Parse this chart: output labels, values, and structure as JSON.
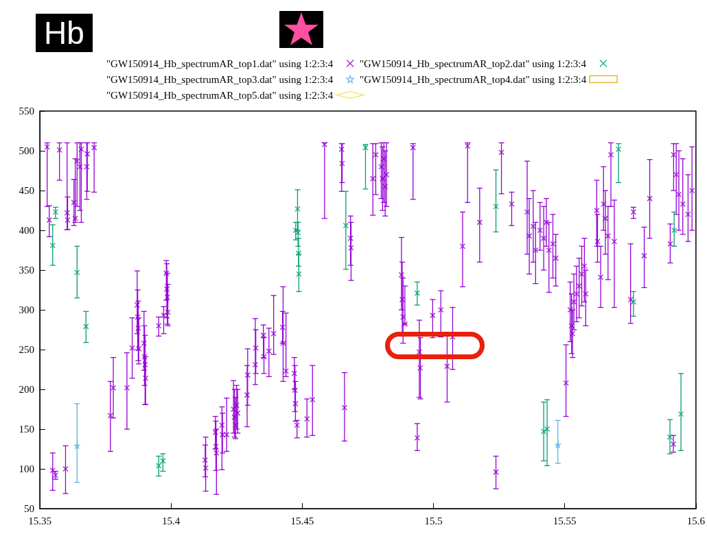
{
  "chart_data": {
    "type": "scatter",
    "annotations": [
      "Hb"
    ],
    "xlim": [
      15.35,
      15.6
    ],
    "xticks": [
      15.35,
      15.4,
      15.45,
      15.5,
      15.55,
      15.6
    ],
    "ylim": [
      50,
      550
    ],
    "yticks": [
      50,
      100,
      150,
      200,
      250,
      300,
      350,
      400,
      450,
      500,
      550
    ],
    "grid": false,
    "legend": "top",
    "series": [
      {
        "name": "\"GW150914_Hb_spectrumAR_top1.dat\" using 1:2:3:4",
        "color": "#9400d3",
        "marker": "cross",
        "x": [
          15.3528,
          15.3536,
          15.3575,
          15.3604,
          15.3606,
          15.363,
          15.3635,
          15.3642,
          15.3653,
          15.3658,
          15.3679,
          15.3681,
          15.3707,
          15.3549,
          15.356,
          15.3598,
          15.3769,
          15.378,
          15.3832,
          15.3852,
          15.3871,
          15.3873,
          15.3875,
          15.3877,
          15.3897,
          15.3899,
          15.3901,
          15.3903,
          15.3953,
          15.3972,
          15.3982,
          15.3984,
          15.3986,
          15.3988,
          15.4132,
          15.413,
          15.4169,
          15.4171,
          15.4173,
          15.4194,
          15.4196,
          15.4212,
          15.4238,
          15.4242,
          15.4246,
          15.425,
          15.4254,
          15.429,
          15.4292,
          15.4321,
          15.4323,
          15.4352,
          15.4354,
          15.4373,
          15.4391,
          15.4425,
          15.4427,
          15.4438,
          15.447,
          15.4472,
          15.4474,
          15.448,
          15.4518,
          15.4539,
          15.4661,
          15.4878,
          15.4881,
          15.4884,
          15.4891,
          15.4946,
          15.495,
          15.4938,
          15.4997,
          15.5028,
          15.5052,
          15.5073,
          15.5111,
          15.4585,
          15.465,
          15.4652,
          15.4684,
          15.4686,
          15.4769,
          15.478,
          15.4801,
          15.4806,
          15.4811,
          15.4816,
          15.4821,
          15.4922,
          15.513,
          15.5176,
          15.5259,
          15.5298,
          15.5357,
          15.5365,
          15.538,
          15.5389,
          15.5406,
          15.542,
          15.543,
          15.544,
          15.5455,
          15.5466,
          15.5505,
          15.5521,
          15.5526,
          15.553,
          15.5535,
          15.5545,
          15.5555,
          15.5565,
          15.5575,
          15.558,
          15.5622,
          15.5625,
          15.5637,
          15.5648,
          15.5655,
          15.5665,
          15.5676,
          15.5689,
          15.5751,
          15.5762,
          15.5803,
          15.5824,
          15.5902,
          15.5915,
          15.5925,
          15.5935,
          15.595,
          15.597,
          15.5985,
          15.5238,
          15.5914
        ],
        "values": [
          505,
          413,
          501,
          422,
          413,
          435,
          415,
          487,
          480,
          502,
          480,
          496,
          504,
          98,
          92,
          100,
          167,
          202,
          202,
          252,
          306,
          291,
          277,
          251,
          258,
          241,
          231,
          214,
          280,
          293,
          346,
          326,
          316,
          297,
          101,
          111,
          146,
          128,
          120,
          155,
          143,
          143,
          175,
          165,
          155,
          180,
          170,
          193,
          218,
          231,
          252,
          268,
          241,
          248,
          270,
          278,
          258,
          223,
          220,
          199,
          182,
          155,
          163,
          187,
          177,
          344,
          313,
          291,
          282,
          247,
          227,
          139,
          293,
          300,
          229,
          266,
          380,
          508,
          502,
          484,
          390,
          378,
          465,
          495,
          480,
          465,
          490,
          455,
          470,
          504,
          506,
          410,
          498,
          433,
          423,
          393,
          405,
          375,
          400,
          390,
          410,
          375,
          383,
          365,
          208,
          300,
          280,
          270,
          310,
          320,
          330,
          345,
          355,
          320,
          425,
          386,
          341,
          433,
          415,
          393,
          495,
          386,
          313,
          423,
          368,
          440,
          383,
          495,
          470,
          445,
          433,
          420,
          450,
          96,
          131
        ],
        "errors": [
          [
            430,
            510
          ],
          [
            392,
            431
          ],
          [
            463,
            510
          ],
          [
            401,
            510
          ],
          [
            401,
            442
          ],
          [
            406,
            464
          ],
          [
            410,
            490
          ],
          [
            430,
            510
          ],
          [
            425,
            510
          ],
          [
            410,
            510
          ],
          [
            439,
            510
          ],
          [
            449,
            510
          ],
          [
            448,
            510
          ],
          [
            73,
            120
          ],
          [
            87,
            97
          ],
          [
            69,
            129
          ],
          [
            122,
            210
          ],
          [
            164,
            240
          ],
          [
            150,
            246
          ],
          [
            214,
            290
          ],
          [
            270,
            349
          ],
          [
            250,
            325
          ],
          [
            236,
            311
          ],
          [
            232,
            290
          ],
          [
            224,
            298
          ],
          [
            205,
            280
          ],
          [
            181,
            268
          ],
          [
            181,
            241
          ],
          [
            267,
            291
          ],
          [
            270,
            304
          ],
          [
            312,
            362
          ],
          [
            290,
            358
          ],
          [
            282,
            346
          ],
          [
            280,
            332
          ],
          [
            72,
            140
          ],
          [
            90,
            130
          ],
          [
            125,
            166
          ],
          [
            98,
            160
          ],
          [
            68,
            150
          ],
          [
            99,
            178
          ],
          [
            120,
            170
          ],
          [
            122,
            189
          ],
          [
            145,
            211
          ],
          [
            140,
            200
          ],
          [
            138,
            190
          ],
          [
            150,
            205
          ],
          [
            145,
            200
          ],
          [
            153,
            230
          ],
          [
            180,
            251
          ],
          [
            206,
            289
          ],
          [
            220,
            275
          ],
          [
            240,
            281
          ],
          [
            220,
            265
          ],
          [
            216,
            277
          ],
          [
            244,
            318
          ],
          [
            258,
            298
          ],
          [
            210,
            329
          ],
          [
            216,
            296
          ],
          [
            200,
            240
          ],
          [
            172,
            230
          ],
          [
            160,
            210
          ],
          [
            139,
            161
          ],
          [
            140,
            188
          ],
          [
            142,
            230
          ],
          [
            135,
            221
          ],
          [
            300,
            391
          ],
          [
            268,
            360
          ],
          [
            258,
            340
          ],
          [
            282,
            330
          ],
          [
            190,
            287
          ],
          [
            188,
            265
          ],
          [
            123,
            157
          ],
          [
            265,
            313
          ],
          [
            266,
            324
          ],
          [
            184,
            267
          ],
          [
            225,
            303
          ],
          [
            329,
            423
          ],
          [
            415,
            510
          ],
          [
            449,
            509
          ],
          [
            460,
            509
          ],
          [
            356,
            418
          ],
          [
            337,
            410
          ],
          [
            419,
            509
          ],
          [
            445,
            509
          ],
          [
            440,
            510
          ],
          [
            425,
            505
          ],
          [
            435,
            510
          ],
          [
            418,
            500
          ],
          [
            430,
            510
          ],
          [
            439,
            509
          ],
          [
            435,
            510
          ],
          [
            360,
            453
          ],
          [
            446,
            510
          ],
          [
            406,
            448
          ],
          [
            370,
            487
          ],
          [
            345,
            440
          ],
          [
            360,
            450
          ],
          [
            333,
            410
          ],
          [
            375,
            435
          ],
          [
            350,
            430
          ],
          [
            380,
            440
          ],
          [
            322,
            410
          ],
          [
            340,
            420
          ],
          [
            330,
            395
          ],
          [
            166,
            256
          ],
          [
            260,
            335
          ],
          [
            245,
            320
          ],
          [
            240,
            300
          ],
          [
            275,
            345
          ],
          [
            285,
            355
          ],
          [
            290,
            365
          ],
          [
            305,
            380
          ],
          [
            310,
            390
          ],
          [
            280,
            350
          ],
          [
            380,
            463
          ],
          [
            360,
            420
          ],
          [
            303,
            380
          ],
          [
            400,
            480
          ],
          [
            370,
            450
          ],
          [
            338,
            430
          ],
          [
            430,
            510
          ],
          [
            303,
            438
          ],
          [
            283,
            383
          ],
          [
            415,
            429
          ],
          [
            328,
            404
          ],
          [
            390,
            489
          ],
          [
            359,
            408
          ],
          [
            450,
            509
          ],
          [
            420,
            509
          ],
          [
            400,
            500
          ],
          [
            395,
            490
          ],
          [
            386,
            470
          ],
          [
            400,
            505
          ],
          [
            75,
            116
          ],
          [
            121,
            142
          ]
        ]
      },
      {
        "name": "\"GW150914_Hb_spectrumAR_top2.dat\" using 1:2:3:4",
        "color": "#009e73",
        "marker": "cross",
        "x": [
          15.3549,
          15.356,
          15.3642,
          15.3676,
          15.3953,
          15.3969,
          15.4475,
          15.4482,
          15.4484,
          15.4486,
          15.4487,
          15.4666,
          15.4741,
          15.4938,
          15.5705,
          15.5238,
          15.5917,
          15.5762,
          15.542,
          15.5433,
          15.5901,
          15.5943
        ],
        "values": [
          381,
          423,
          347,
          279,
          104,
          110,
          400,
          427,
          397,
          371,
          345,
          406,
          504,
          321,
          502,
          430,
          400,
          310,
          147,
          150,
          140,
          169
        ],
        "errors": [
          [
            356,
            407
          ],
          [
            415,
            429
          ],
          [
            315,
            380
          ],
          [
            259,
            298
          ],
          [
            91,
            116
          ],
          [
            97,
            119
          ],
          [
            388,
            410
          ],
          [
            400,
            451
          ],
          [
            380,
            410
          ],
          [
            355,
            390
          ],
          [
            323,
            370
          ],
          [
            351,
            449
          ],
          [
            452,
            508
          ],
          [
            306,
            335
          ],
          [
            460,
            509
          ],
          [
            398,
            476
          ],
          [
            380,
            423
          ],
          [
            292,
            323
          ],
          [
            110,
            184
          ],
          [
            104,
            187
          ],
          [
            119,
            162
          ],
          [
            123,
            220
          ]
        ]
      },
      {
        "name": "\"GW150914_Hb_spectrumAR_top3.dat\" using 1:2:3:4",
        "color": "#56b4e9",
        "marker": "star",
        "x": [
          15.3642,
          15.5474
        ],
        "values": [
          129,
          130
        ],
        "errors": [
          [
            83,
            182
          ],
          [
            107,
            161
          ]
        ]
      },
      {
        "name": "\"GW150914_Hb_spectrumAR_top4.dat\" using 1:2:3:4",
        "color": "#e69f00",
        "marker": "square"
      },
      {
        "name": "\"GW150914_Hb_spectrumAR_top5.dat\" using 1:2:3:4",
        "color": "#f0e442",
        "marker": "diamond"
      }
    ]
  }
}
